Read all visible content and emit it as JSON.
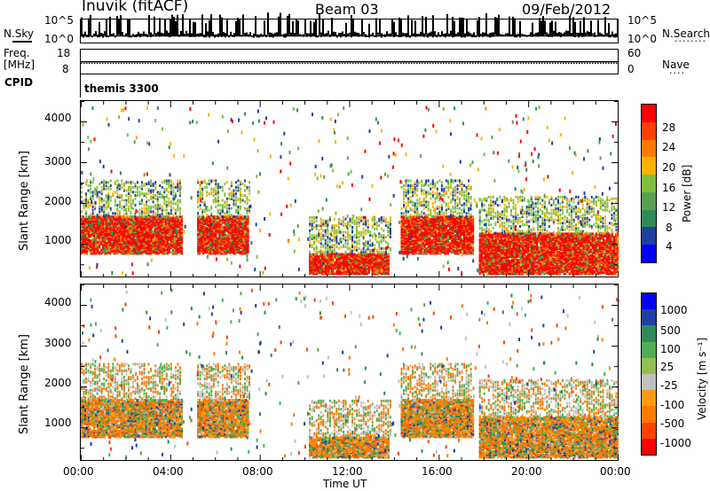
{
  "header": {
    "station": "Inuvik (fitACF)",
    "beam": "Beam 03",
    "date": "09/Feb/2012"
  },
  "status_panels": {
    "nsky_label": "N.Sky",
    "nsky_ticks": [
      "10^5",
      "10^0"
    ],
    "nsearch_label": "N.Search",
    "freq_label_line1": "Freq.",
    "freq_label_line2": "[MHz]",
    "freq_ticks": [
      "18",
      "8"
    ],
    "nave_label": "Nave",
    "nave_ticks": [
      "60",
      "0"
    ],
    "cpid_label": "CPID",
    "cpid_value": "themis 3300"
  },
  "colors": {
    "power_scale": [
      "#0000ff",
      "#1f3fa0",
      "#2e8b57",
      "#5aa050",
      "#7fc040",
      "#ffb000",
      "#ff7a00",
      "#ff4000",
      "#ff0000"
    ],
    "velocity_scale": [
      "#ff0000",
      "#ff4000",
      "#ff7a00",
      "#ff9a10",
      "#c0c0c0",
      "#90c050",
      "#4caf50",
      "#2e8b57",
      "#1f3fa0",
      "#0000ff"
    ]
  },
  "chart_data": [
    {
      "type": "heatmap",
      "name": "power",
      "ylabel": "Slant Range [km]",
      "yticks": [
        "4000",
        "3000",
        "2000",
        "1000"
      ],
      "ylim": [
        180,
        4500
      ],
      "xlim": [
        "00:00",
        "24:00"
      ],
      "colorbar_label": "Power [dB]",
      "colorbar_ticks": [
        "28",
        "24",
        "20",
        "16",
        "12",
        "8",
        "4"
      ],
      "colorbar_range": [
        0,
        32
      ],
      "bands": [
        {
          "t0": 0.0,
          "t1": 4.5,
          "range": [
            800,
            1700
          ],
          "level": "strong"
        },
        {
          "t0": 5.2,
          "t1": 7.5,
          "range": [
            800,
            1700
          ],
          "level": "strong"
        },
        {
          "t0": 10.2,
          "t1": 13.8,
          "range": [
            300,
            800
          ],
          "level": "strong"
        },
        {
          "t0": 14.3,
          "t1": 17.5,
          "range": [
            800,
            1700
          ],
          "level": "strong"
        },
        {
          "t0": 17.8,
          "t1": 24.0,
          "range": [
            300,
            1300
          ],
          "level": "strong"
        }
      ]
    },
    {
      "type": "heatmap",
      "name": "velocity",
      "ylabel": "Slant Range [km]",
      "yticks": [
        "4000",
        "3000",
        "2000",
        "1000"
      ],
      "xlabel": "Time UT",
      "xticks": [
        "00:00",
        "04:00",
        "08:00",
        "12:00",
        "16:00",
        "20:00",
        "00:00"
      ],
      "ylim": [
        180,
        4500
      ],
      "colorbar_label": "Velocity [m s⁻¹]",
      "colorbar_ticks": [
        "1000",
        "500",
        "100",
        "25",
        "-25",
        "-100",
        "-500",
        "-1000"
      ],
      "colorbar_range": [
        -1200,
        1200
      ]
    }
  ]
}
